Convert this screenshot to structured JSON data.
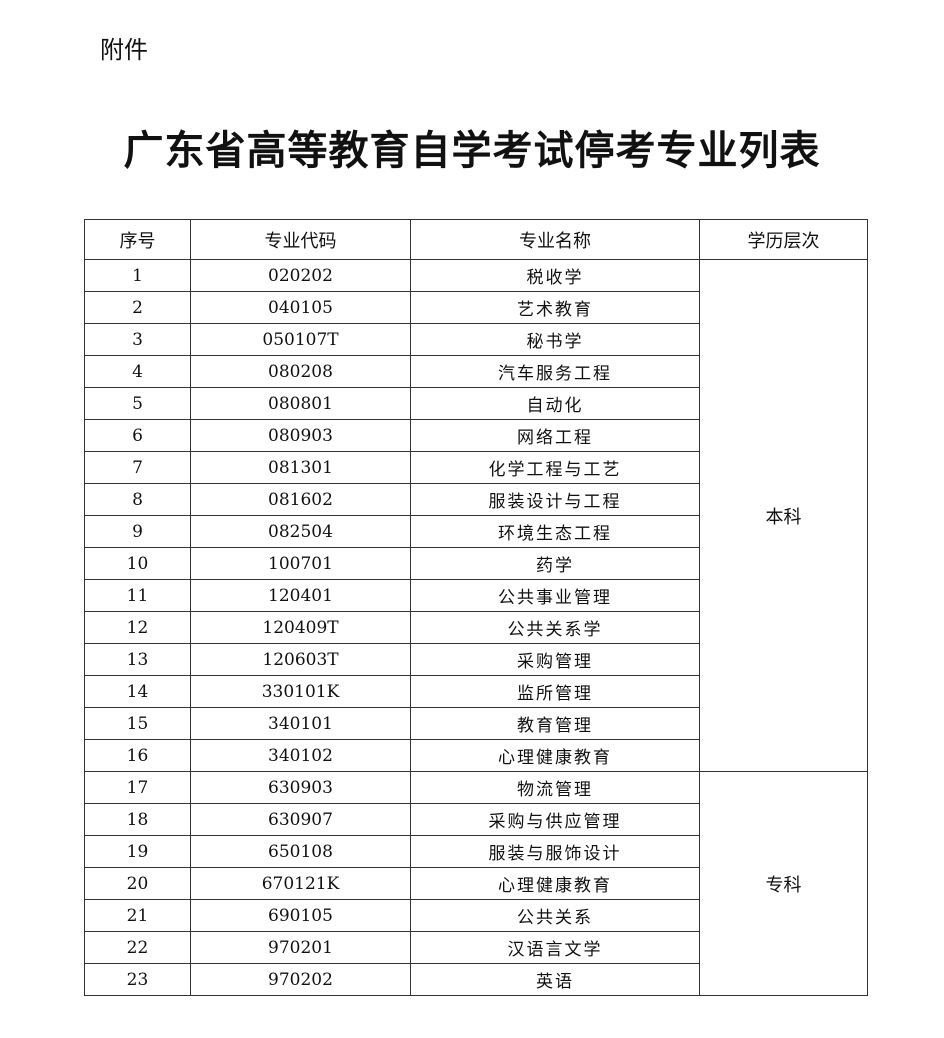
{
  "attachment_label": "附件",
  "title": "广东省高等教育自学考试停考专业列表",
  "table": {
    "headers": [
      "序号",
      "专业代码",
      "专业名称",
      "学历层次"
    ],
    "rows": [
      {
        "no": "1",
        "code": "020202",
        "name": "税收学"
      },
      {
        "no": "2",
        "code": "040105",
        "name": "艺术教育"
      },
      {
        "no": "3",
        "code": "050107T",
        "name": "秘书学"
      },
      {
        "no": "4",
        "code": "080208",
        "name": "汽车服务工程"
      },
      {
        "no": "5",
        "code": "080801",
        "name": "自动化"
      },
      {
        "no": "6",
        "code": "080903",
        "name": "网络工程"
      },
      {
        "no": "7",
        "code": "081301",
        "name": "化学工程与工艺"
      },
      {
        "no": "8",
        "code": "081602",
        "name": "服装设计与工程"
      },
      {
        "no": "9",
        "code": "082504",
        "name": "环境生态工程"
      },
      {
        "no": "10",
        "code": "100701",
        "name": "药学"
      },
      {
        "no": "11",
        "code": "120401",
        "name": "公共事业管理"
      },
      {
        "no": "12",
        "code": "120409T",
        "name": "公共关系学"
      },
      {
        "no": "13",
        "code": "120603T",
        "name": "采购管理"
      },
      {
        "no": "14",
        "code": "330101K",
        "name": "监所管理"
      },
      {
        "no": "15",
        "code": "340101",
        "name": "教育管理"
      },
      {
        "no": "16",
        "code": "340102",
        "name": "心理健康教育"
      },
      {
        "no": "17",
        "code": "630903",
        "name": "物流管理"
      },
      {
        "no": "18",
        "code": "630907",
        "name": "采购与供应管理"
      },
      {
        "no": "19",
        "code": "650108",
        "name": "服装与服饰设计"
      },
      {
        "no": "20",
        "code": "670121K",
        "name": "心理健康教育"
      },
      {
        "no": "21",
        "code": "690105",
        "name": "公共关系"
      },
      {
        "no": "22",
        "code": "970201",
        "name": "汉语言文学"
      },
      {
        "no": "23",
        "code": "970202",
        "name": "英语"
      }
    ],
    "levels": [
      {
        "label": "本科",
        "rows": 16
      },
      {
        "label": "专科",
        "rows": 7
      }
    ]
  }
}
